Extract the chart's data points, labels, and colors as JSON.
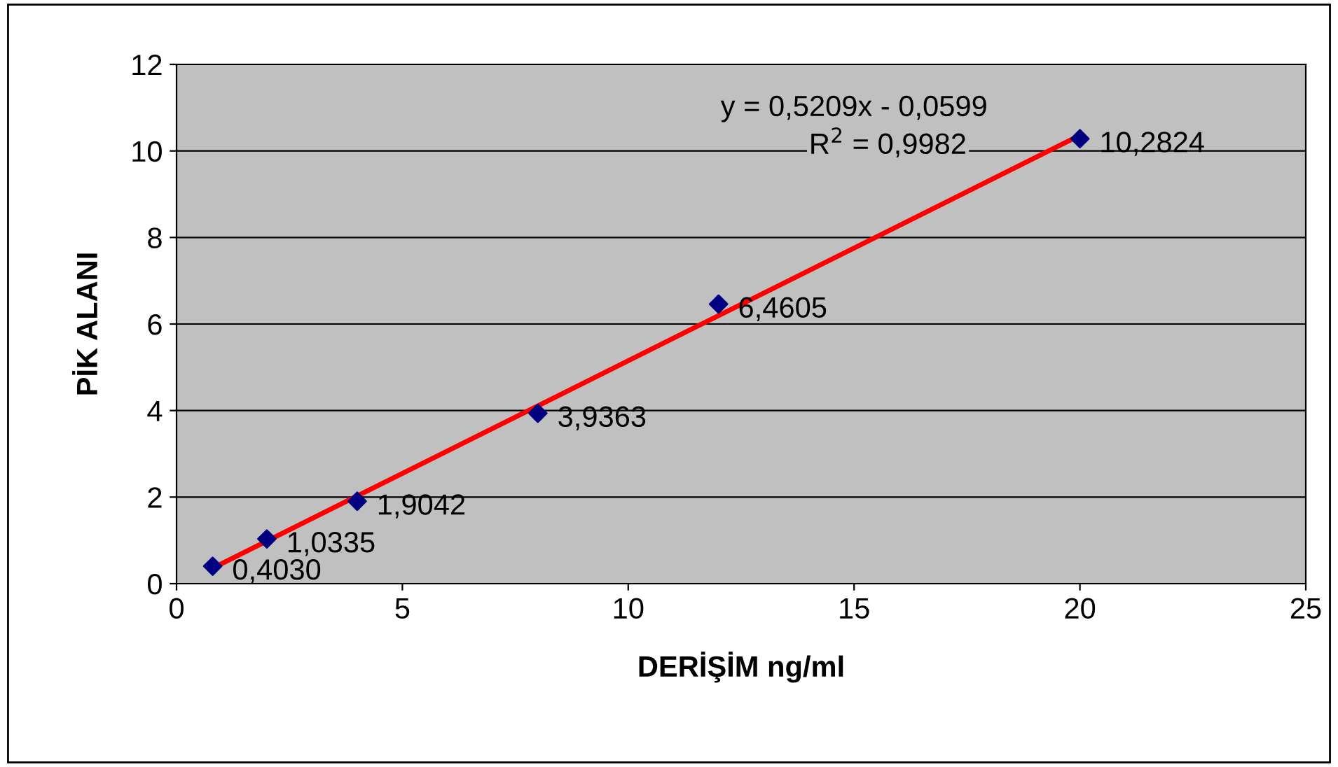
{
  "chart_data": {
    "type": "scatter",
    "xlabel": "DERİŞİM ng/ml",
    "ylabel": "PİK ALANI",
    "x": [
      0.8,
      2,
      4,
      8,
      12,
      20
    ],
    "series": [
      {
        "color": "#000080",
        "marker": "diamond",
        "values": [
          0.403,
          1.0335,
          1.9042,
          3.9363,
          6.4605,
          10.2824
        ],
        "value_labels": [
          "0,4030",
          "1,0335",
          "1,9042",
          "3,9363",
          "6,4605",
          "10,2824"
        ]
      },
      {
        "type": "line",
        "color": "#ff0000",
        "x": [
          0.8,
          20
        ],
        "values": [
          0.36,
          10.36
        ],
        "line_style": "solid",
        "marker": "none"
      }
    ],
    "annotations": [
      "y = 0,5209x - 0,0599",
      "R$^{2}$ = 0,9982"
    ],
    "xlim": [
      0,
      25
    ],
    "xticks": [
      0,
      5,
      10,
      15,
      20,
      25
    ],
    "ylim": [
      0,
      12
    ],
    "yticks": [
      0,
      2,
      4,
      6,
      8,
      10,
      12
    ],
    "grid": "y",
    "legend": false
  }
}
